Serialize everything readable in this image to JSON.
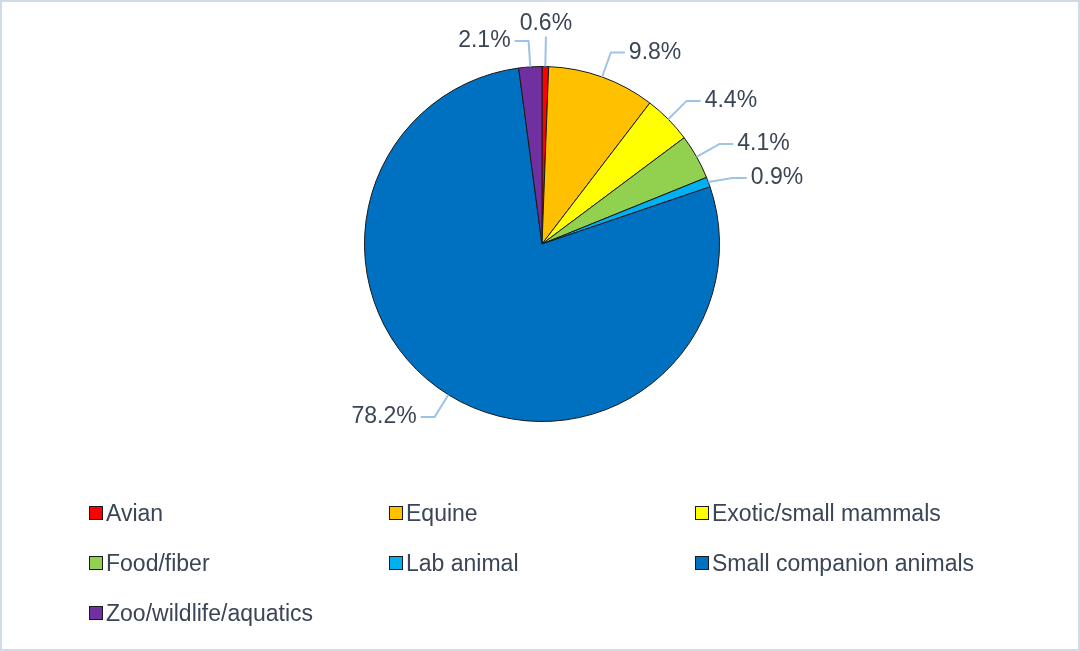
{
  "chart_data": {
    "type": "pie",
    "categories": [
      "Avian",
      "Equine",
      "Exotic/small mammals",
      "Food/fiber",
      "Lab animal",
      "Small companion animals",
      "Zoo/wildlife/aquatics"
    ],
    "values": [
      0.6,
      9.8,
      4.4,
      4.1,
      0.9,
      78.2,
      2.1
    ],
    "colors": [
      "#ff0000",
      "#ffc000",
      "#ffff00",
      "#92d050",
      "#00b0f0",
      "#0070c0",
      "#7030a0"
    ],
    "value_labels": [
      "0.6%",
      "9.8%",
      "4.4%",
      "4.1%",
      "0.9%",
      "78.2%",
      "2.1%"
    ],
    "legend": "bottom"
  }
}
